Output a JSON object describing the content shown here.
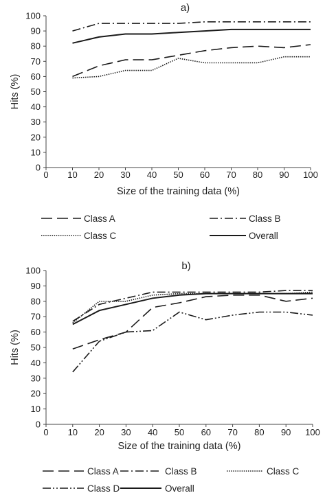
{
  "chart_data": [
    {
      "type": "line",
      "title": "a)",
      "xlabel": "Size of the training data (%)",
      "ylabel": "Hits (%)",
      "xlim": [
        0,
        100
      ],
      "ylim": [
        0,
        100
      ],
      "x_ticks": [
        0,
        10,
        20,
        30,
        40,
        50,
        60,
        70,
        80,
        90,
        100
      ],
      "y_ticks": [
        0,
        10,
        20,
        30,
        40,
        50,
        60,
        70,
        80,
        90,
        100
      ],
      "grid": false,
      "legend_position": "bottom",
      "x": [
        10,
        20,
        30,
        40,
        50,
        60,
        70,
        80,
        90,
        100
      ],
      "series": [
        {
          "name": "Class A",
          "style": "dash",
          "values": [
            60,
            67,
            71,
            71,
            74,
            77,
            79,
            80,
            79,
            81
          ]
        },
        {
          "name": "Class B",
          "style": "dashdot",
          "values": [
            90,
            95,
            95,
            95,
            95,
            96,
            96,
            96,
            96,
            96
          ]
        },
        {
          "name": "Class C",
          "style": "dotted",
          "values": [
            59,
            60,
            64,
            64,
            72,
            69,
            69,
            69,
            73,
            73
          ]
        },
        {
          "name": "Overall",
          "style": "solid",
          "values": [
            82,
            86,
            88,
            88,
            89,
            90,
            91,
            91,
            91,
            91
          ]
        }
      ]
    },
    {
      "type": "line",
      "title": "b)",
      "xlabel": "Size of the training data (%)",
      "ylabel": "Hits (%)",
      "xlim": [
        0,
        100
      ],
      "ylim": [
        0,
        100
      ],
      "x_ticks": [
        0,
        10,
        20,
        30,
        40,
        50,
        60,
        70,
        80,
        90,
        100
      ],
      "y_ticks": [
        0,
        10,
        20,
        30,
        40,
        50,
        60,
        70,
        80,
        90,
        100
      ],
      "grid": false,
      "legend_position": "bottom",
      "x": [
        10,
        20,
        30,
        40,
        50,
        60,
        70,
        80,
        90,
        100
      ],
      "series": [
        {
          "name": "Class A",
          "style": "dash",
          "values": [
            49,
            55,
            60,
            76,
            79,
            83,
            84,
            84,
            80,
            82
          ]
        },
        {
          "name": "Class B",
          "style": "dashdot",
          "values": [
            67,
            78,
            82,
            86,
            86,
            86,
            86,
            86,
            87,
            87
          ]
        },
        {
          "name": "Class C",
          "style": "dotted",
          "values": [
            66,
            80,
            80,
            84,
            85,
            85,
            85,
            85,
            85,
            86
          ]
        },
        {
          "name": "Class D",
          "style": "dashdotdot",
          "values": [
            34,
            54,
            60,
            61,
            73,
            68,
            71,
            73,
            73,
            71
          ]
        },
        {
          "name": "Overall",
          "style": "solid",
          "values": [
            65,
            74,
            78,
            82,
            84,
            85,
            85,
            85,
            85,
            85
          ]
        }
      ]
    }
  ]
}
